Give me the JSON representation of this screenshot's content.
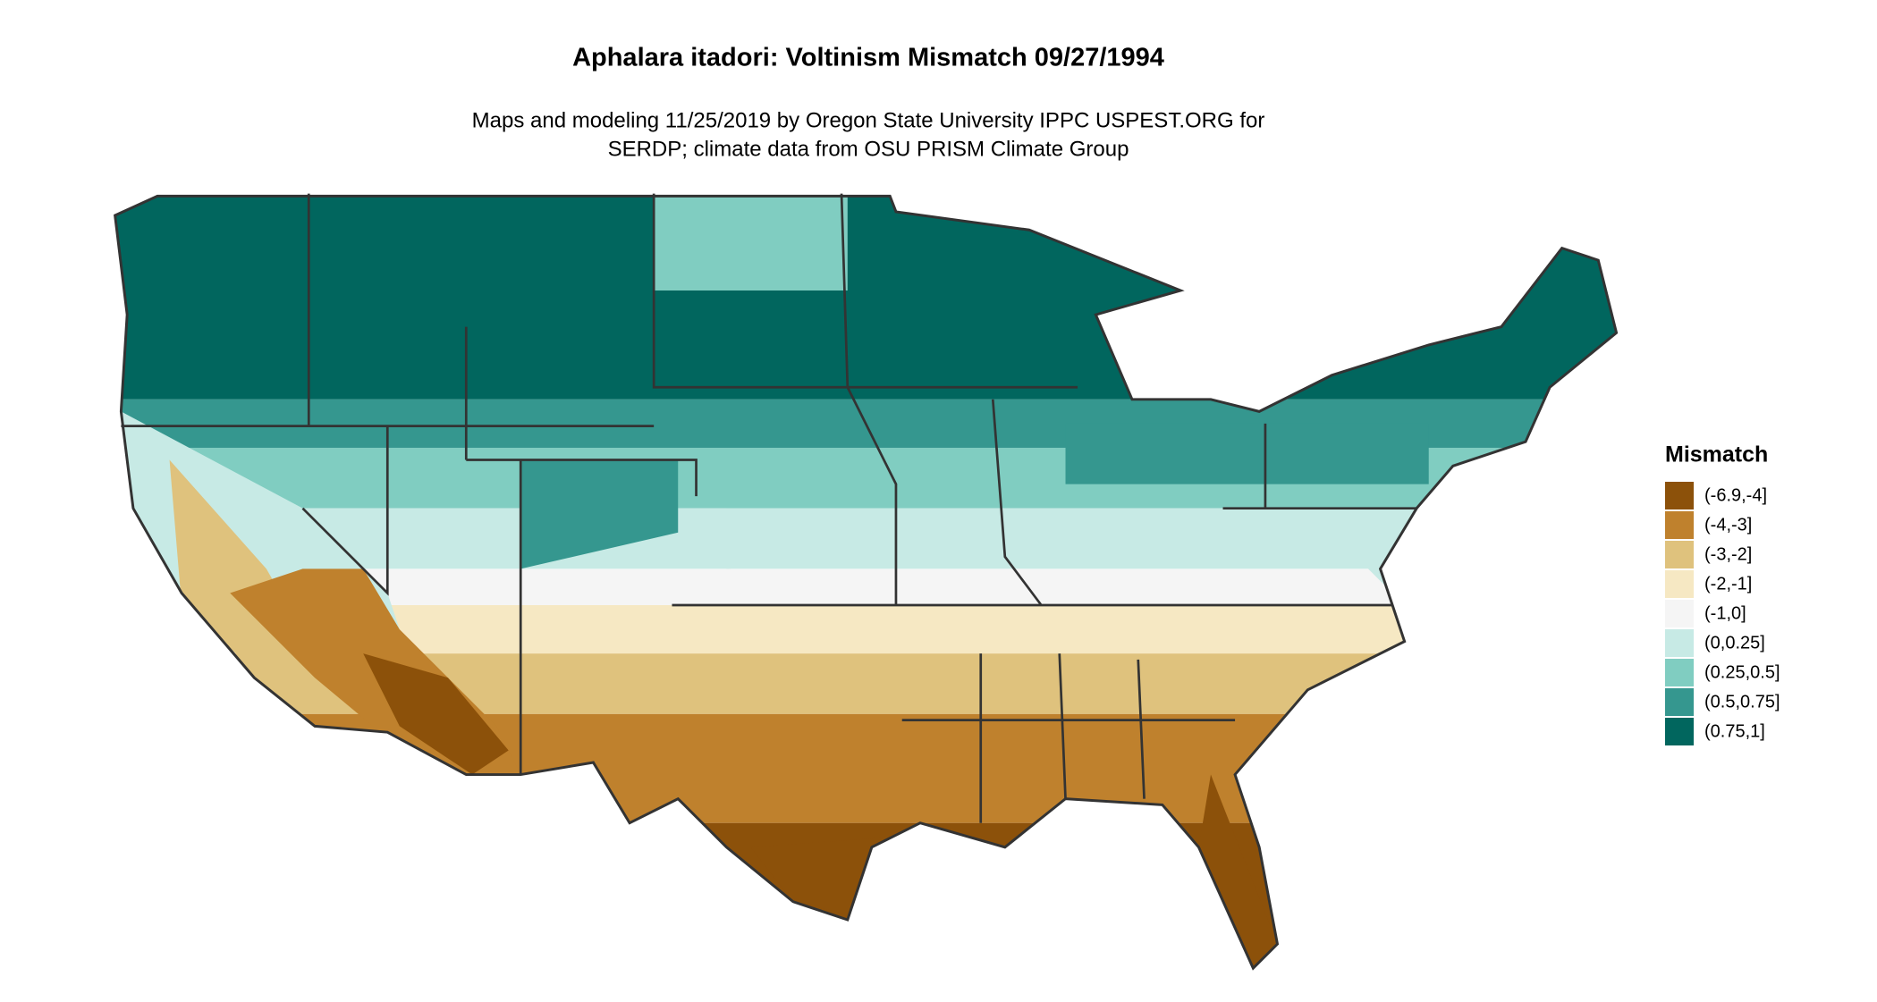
{
  "title": "Aphalara itadori: Voltinism Mismatch 09/27/1994",
  "subtitle": [
    "Maps and modeling 11/25/2019 by Oregon State University IPPC USPEST.ORG for",
    "SERDP; climate data from OSU PRISM Climate Group"
  ],
  "legend": {
    "title": "Mismatch",
    "items": [
      {
        "label": "(-6.9,-4]",
        "color": "#8c510a"
      },
      {
        "label": "(-4,-3]",
        "color": "#bf812d"
      },
      {
        "label": "(-3,-2]",
        "color": "#dfc27d"
      },
      {
        "label": "(-2,-1]",
        "color": "#f6e8c3"
      },
      {
        "label": "(-1,0]",
        "color": "#f5f5f5"
      },
      {
        "label": "(0,0.25]",
        "color": "#c7eae5"
      },
      {
        "label": "(0.25,0.5]",
        "color": "#80cdc1"
      },
      {
        "label": "(0.5,0.75]",
        "color": "#35978f"
      },
      {
        "label": "(0.75,1]",
        "color": "#01665e"
      }
    ]
  }
}
